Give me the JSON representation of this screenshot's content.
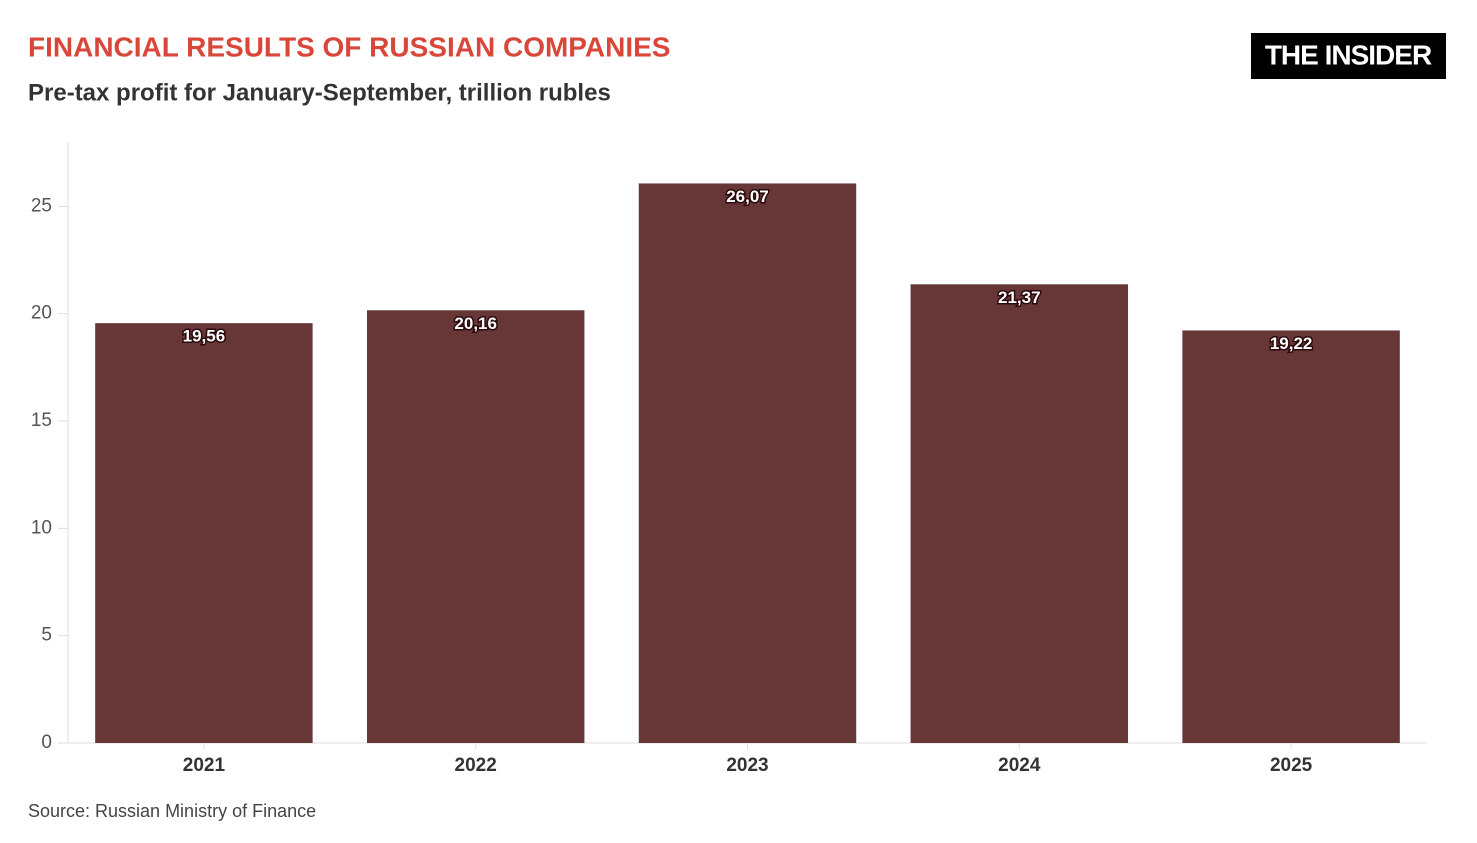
{
  "chart_data": {
    "type": "bar",
    "title": "FINANCIAL RESULTS OF RUSSIAN COMPANIES",
    "subtitle": "Pre-tax profit for January-September, trillion rubles",
    "logo": "THE INSIDER",
    "source": "Source: Russian Ministry of Finance",
    "categories": [
      "2021",
      "2022",
      "2023",
      "2024",
      "2025"
    ],
    "values": [
      19.56,
      20.16,
      26.07,
      21.37,
      19.22
    ],
    "value_labels": [
      "19,56",
      "20,16",
      "26,07",
      "21,37",
      "19,22"
    ],
    "color": "#673637",
    "ylim": [
      0,
      28
    ],
    "yticks": [
      0,
      5,
      10,
      15,
      20,
      25
    ],
    "grid": false
  }
}
